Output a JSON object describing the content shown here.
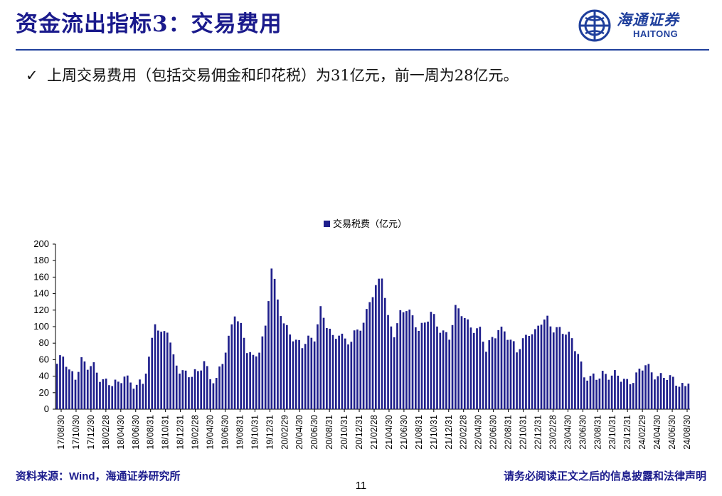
{
  "slide": {
    "title": "资金流出指标3：交易费用",
    "bullet_mark": "✓",
    "bullet_text": "上周交易费用（包括交易佣金和印花税）为31亿元，前一周为28亿元。",
    "page_number": "11"
  },
  "logo": {
    "name_cn": "海通证券",
    "name_en": "HAITONG",
    "icon": "haitong-emblem-icon"
  },
  "footer": {
    "source_prefix": "资料来源：",
    "source_wind": "Wind",
    "source_suffix": "，海通证券研究所",
    "disclaimer": "请务必阅读正文之后的信息披露和法律声明"
  },
  "colors": {
    "title": "#1a1a8c",
    "rule": "#1f3f9c",
    "bar": "#1f1f8c"
  },
  "chart_data": {
    "type": "bar",
    "legend": [
      "交易税费（亿元）"
    ],
    "legend_position": "top-center",
    "grid": false,
    "ylim": [
      0,
      200
    ],
    "yticks": [
      0,
      20,
      40,
      60,
      80,
      100,
      120,
      140,
      160,
      180,
      200
    ],
    "xticks": [
      "17/08/30",
      "17/10/30",
      "17/12/30",
      "18/02/28",
      "18/04/30",
      "18/06/30",
      "18/08/31",
      "18/10/31",
      "18/12/31",
      "19/02/28",
      "19/04/30",
      "19/06/30",
      "19/08/31",
      "19/10/31",
      "19/12/31",
      "20/02/29",
      "20/04/30",
      "20/06/30",
      "20/08/31",
      "20/10/31",
      "20/12/31",
      "21/02/28",
      "21/04/30",
      "21/06/30",
      "21/08/31",
      "21/10/31",
      "21/12/31",
      "22/02/28",
      "22/04/30",
      "22/06/30",
      "22/08/31",
      "22/10/31",
      "22/12/31",
      "23/02/28",
      "23/04/30",
      "23/06/30",
      "23/08/31",
      "23/10/31",
      "23/12/31",
      "24/02/29",
      "24/04/30",
      "24/06/30",
      "24/08/30"
    ],
    "series": [
      {
        "name": "交易税费（亿元）",
        "note_frequency": "weekly",
        "anchors": [
          [
            0,
            55
          ],
          [
            2,
            62
          ],
          [
            4,
            45
          ],
          [
            6,
            42
          ],
          [
            8,
            60
          ],
          [
            10,
            50
          ],
          [
            12,
            50
          ],
          [
            14,
            40
          ],
          [
            16,
            35
          ],
          [
            18,
            30
          ],
          [
            20,
            28
          ],
          [
            22,
            42
          ],
          [
            24,
            35
          ],
          [
            26,
            28
          ],
          [
            28,
            30
          ],
          [
            30,
            60
          ],
          [
            32,
            110
          ],
          [
            34,
            90
          ],
          [
            36,
            95
          ],
          [
            38,
            60
          ],
          [
            40,
            50
          ],
          [
            42,
            45
          ],
          [
            44,
            40
          ],
          [
            46,
            42
          ],
          [
            48,
            60
          ],
          [
            50,
            40
          ],
          [
            52,
            35
          ],
          [
            54,
            55
          ],
          [
            56,
            85
          ],
          [
            58,
            120
          ],
          [
            60,
            100
          ],
          [
            62,
            70
          ],
          [
            64,
            60
          ],
          [
            66,
            75
          ],
          [
            68,
            100
          ],
          [
            70,
            170
          ],
          [
            72,
            130
          ],
          [
            74,
            105
          ],
          [
            76,
            95
          ],
          [
            78,
            80
          ],
          [
            80,
            75
          ],
          [
            82,
            85
          ],
          [
            84,
            90
          ],
          [
            86,
            120
          ],
          [
            88,
            100
          ],
          [
            90,
            85
          ],
          [
            92,
            95
          ],
          [
            94,
            85
          ],
          [
            96,
            80
          ],
          [
            98,
            95
          ],
          [
            100,
            105
          ],
          [
            102,
            135
          ],
          [
            104,
            145
          ],
          [
            106,
            160
          ],
          [
            108,
            110
          ],
          [
            110,
            95
          ],
          [
            112,
            115
          ],
          [
            114,
            120
          ],
          [
            116,
            110
          ],
          [
            118,
            100
          ],
          [
            120,
            105
          ],
          [
            122,
            115
          ],
          [
            124,
            100
          ],
          [
            126,
            95
          ],
          [
            128,
            90
          ],
          [
            130,
            120
          ],
          [
            132,
            115
          ],
          [
            134,
            105
          ],
          [
            136,
            100
          ],
          [
            138,
            95
          ],
          [
            140,
            70
          ],
          [
            142,
            85
          ],
          [
            144,
            100
          ],
          [
            146,
            95
          ],
          [
            148,
            80
          ],
          [
            150,
            70
          ],
          [
            152,
            85
          ],
          [
            154,
            95
          ],
          [
            156,
            90
          ],
          [
            158,
            105
          ],
          [
            160,
            110
          ],
          [
            162,
            100
          ],
          [
            164,
            95
          ],
          [
            166,
            90
          ],
          [
            168,
            85
          ],
          [
            170,
            70
          ],
          [
            172,
            40
          ],
          [
            174,
            35
          ],
          [
            176,
            38
          ],
          [
            178,
            45
          ],
          [
            180,
            42
          ],
          [
            182,
            40
          ],
          [
            184,
            36
          ],
          [
            186,
            34
          ],
          [
            188,
            38
          ],
          [
            190,
            45
          ],
          [
            192,
            52
          ],
          [
            194,
            45
          ],
          [
            196,
            42
          ],
          [
            198,
            40
          ],
          [
            200,
            35
          ],
          [
            202,
            32
          ],
          [
            204,
            30
          ],
          [
            206,
            31
          ]
        ],
        "last_value": 31,
        "previous_value": 28
      }
    ]
  }
}
